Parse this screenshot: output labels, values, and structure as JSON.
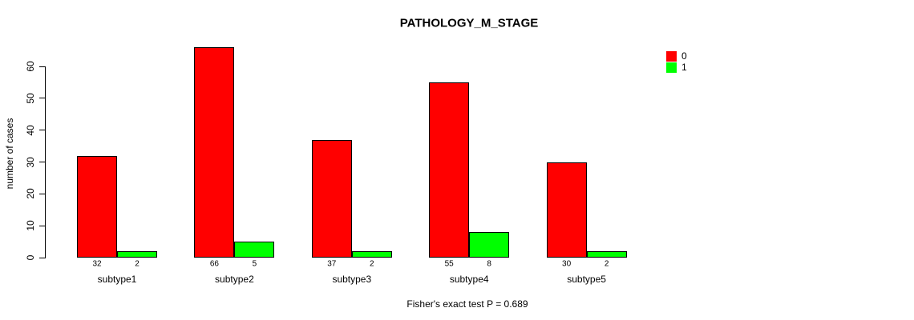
{
  "chart_data": {
    "type": "bar",
    "title": "PATHOLOGY_M_STAGE",
    "ylabel": "number of cases",
    "xlabel": "",
    "categories": [
      "subtype1",
      "subtype2",
      "subtype3",
      "subtype4",
      "subtype5"
    ],
    "series": [
      {
        "name": "0",
        "color": "#FF0000",
        "values": [
          32,
          66,
          37,
          55,
          30
        ]
      },
      {
        "name": "1",
        "color": "#00FF00",
        "values": [
          2,
          5,
          2,
          8,
          2
        ]
      }
    ],
    "bar_value_labels": [
      [
        32,
        66,
        37,
        55,
        30
      ],
      [
        2,
        5,
        2,
        8,
        2
      ]
    ],
    "yticks": [
      0,
      10,
      20,
      30,
      40,
      50,
      60
    ],
    "ylim": [
      0,
      66
    ],
    "grid": false,
    "legend_position": "top-right-outside",
    "bar_border_color": "#000000",
    "annotation": "Fisher's exact test P = 0.689"
  }
}
